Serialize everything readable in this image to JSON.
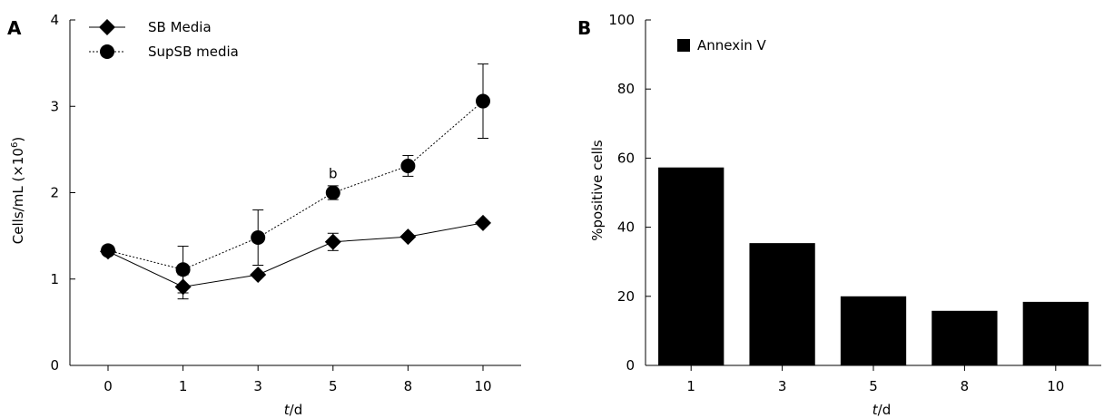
{
  "chart_data": [
    {
      "panel": "A",
      "type": "line",
      "x": [
        "0",
        "1",
        "3",
        "5",
        "8",
        "10"
      ],
      "ylabel_main": "Cells/mL (×10",
      "ylabel_sup": "6",
      "ylabel_end": ")",
      "xlabel_italic": "t",
      "xlabel_rest": "/d",
      "ylim": [
        0,
        4
      ],
      "yticks": [
        "0",
        "1",
        "2",
        "3",
        "4"
      ],
      "grid": false,
      "legend_position": "top-left",
      "series": [
        {
          "name": "SB Media",
          "marker": "diamond",
          "line_style": "solid",
          "values": [
            1.32,
            0.91,
            1.05,
            1.43,
            1.49,
            1.65
          ],
          "errors": [
            0,
            0.14,
            0,
            0.1,
            0,
            0
          ]
        },
        {
          "name": "SupSB media",
          "marker": "circle",
          "line_style": "dotted",
          "values": [
            1.33,
            1.11,
            1.48,
            2.0,
            2.31,
            3.06
          ],
          "errors": [
            0,
            0.27,
            0.32,
            0.08,
            0.12,
            0.43
          ]
        }
      ],
      "annotation": {
        "text": "b",
        "x": "5",
        "y": 2.22
      }
    },
    {
      "panel": "B",
      "type": "bar",
      "categories": [
        "1",
        "3",
        "5",
        "8",
        "10"
      ],
      "ylabel": "%positive cells",
      "xlabel_italic": "t",
      "xlabel_rest": "/d",
      "ylim": [
        0,
        100
      ],
      "yticks": [
        "0",
        "20",
        "40",
        "60",
        "80",
        "100"
      ],
      "grid": false,
      "legend_position": "top-left",
      "series": [
        {
          "name": "Annexin V",
          "values": [
            57.3,
            35.4,
            20.0,
            15.8,
            18.4
          ]
        }
      ]
    }
  ],
  "colors": {
    "ink": "#000000",
    "background": "#ffffff"
  }
}
